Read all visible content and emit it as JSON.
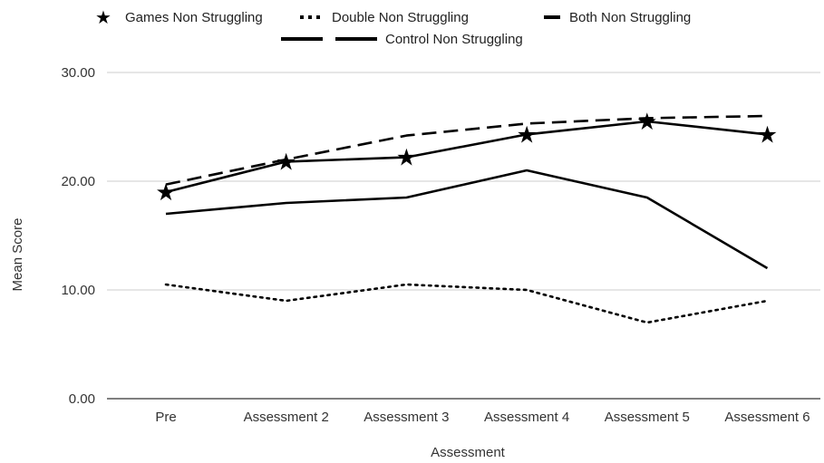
{
  "chart_data": {
    "type": "line",
    "categories": [
      "Pre",
      "Assessment 2",
      "Assessment 3",
      "Assessment 4",
      "Assessment 5",
      "Assessment 6"
    ],
    "xlabel": "Assessment",
    "ylabel": "Mean Score",
    "ylim": [
      0,
      30
    ],
    "yticks": [
      "0.00",
      "10.00",
      "20.00",
      "30.00"
    ],
    "grid": true,
    "legend_position": "top",
    "series": [
      {
        "name": "Games Non Struggling",
        "style": "solid-star",
        "color": "#000000",
        "values": [
          19.0,
          21.8,
          22.2,
          24.3,
          25.5,
          24.3
        ]
      },
      {
        "name": "Double Non Struggling",
        "style": "dotted",
        "color": "#000000",
        "values": [
          10.5,
          9.0,
          10.5,
          10.0,
          7.0,
          9.0
        ]
      },
      {
        "name": "Both Non Struggling",
        "style": "dashed",
        "color": "#000000",
        "values": [
          19.7,
          22.0,
          24.2,
          25.3,
          25.8,
          26.0
        ]
      },
      {
        "name": "Control Non Struggling",
        "style": "solid",
        "color": "#000000",
        "values": [
          17.0,
          18.0,
          18.5,
          21.0,
          18.5,
          12.0
        ]
      }
    ]
  }
}
